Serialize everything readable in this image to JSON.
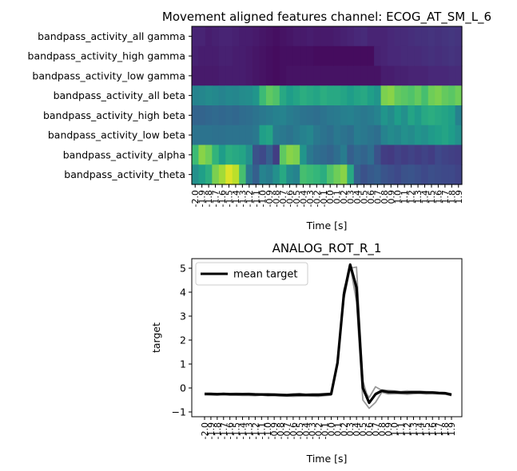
{
  "chart_data": [
    {
      "type": "heatmap",
      "title": "Movement aligned features channel: ECOG_AT_SM_L_6",
      "xlabel": "Time [s]",
      "ylabel": "",
      "x_ticks": [
        "-2.0",
        "-1.9",
        "-1.8",
        "-1.7",
        "-1.6",
        "-1.5",
        "-1.4",
        "-1.3",
        "-1.2",
        "-1.1",
        "-1.0",
        "-0.9",
        "-0.8",
        "-0.7",
        "-0.6",
        "-0.5",
        "-0.4",
        "-0.3",
        "-0.2",
        "-0.1",
        "0.0",
        "0.1",
        "0.2",
        "0.3",
        "0.4",
        "0.5",
        "0.6",
        "0.7",
        "0.8",
        "0.9",
        "1.0",
        "1.1",
        "1.2",
        "1.3",
        "1.4",
        "1.5",
        "1.6",
        "1.7",
        "1.8",
        "1.9"
      ],
      "rows": [
        "bandpass_activity_all gamma",
        "bandpass_activity_high gamma",
        "bandpass_activity_low gamma",
        "bandpass_activity_all beta",
        "bandpass_activity_high beta",
        "bandpass_activity_low beta",
        "bandpass_activity_alpha",
        "bandpass_activity_theta"
      ],
      "colormap": "viridis",
      "values": [
        [
          0.1,
          0.1,
          0.08,
          0.09,
          0.1,
          0.1,
          0.09,
          0.08,
          0.08,
          0.07,
          0.06,
          0.05,
          0.04,
          0.05,
          0.06,
          0.07,
          0.07,
          0.08,
          0.07,
          0.07,
          0.07,
          0.08,
          0.09,
          0.1,
          0.11,
          0.12,
          0.1,
          0.1,
          0.1,
          0.11,
          0.12,
          0.12,
          0.13,
          0.14,
          0.14,
          0.15,
          0.14,
          0.15,
          0.16,
          0.15
        ],
        [
          0.09,
          0.08,
          0.08,
          0.08,
          0.09,
          0.09,
          0.08,
          0.08,
          0.07,
          0.06,
          0.05,
          0.04,
          0.03,
          0.04,
          0.04,
          0.04,
          0.04,
          0.04,
          0.03,
          0.03,
          0.03,
          0.03,
          0.03,
          0.03,
          0.03,
          0.03,
          0.03,
          0.09,
          0.1,
          0.11,
          0.11,
          0.12,
          0.12,
          0.12,
          0.13,
          0.14,
          0.13,
          0.14,
          0.15,
          0.14
        ],
        [
          0.07,
          0.07,
          0.07,
          0.07,
          0.08,
          0.08,
          0.08,
          0.08,
          0.07,
          0.06,
          0.05,
          0.04,
          0.03,
          0.04,
          0.05,
          0.05,
          0.05,
          0.05,
          0.05,
          0.05,
          0.05,
          0.05,
          0.05,
          0.05,
          0.05,
          0.05,
          0.05,
          0.05,
          0.08,
          0.08,
          0.09,
          0.09,
          0.1,
          0.1,
          0.1,
          0.11,
          0.11,
          0.11,
          0.12,
          0.12
        ],
        [
          0.45,
          0.46,
          0.48,
          0.47,
          0.45,
          0.47,
          0.46,
          0.48,
          0.49,
          0.52,
          0.68,
          0.75,
          0.72,
          0.6,
          0.55,
          0.58,
          0.62,
          0.6,
          0.58,
          0.62,
          0.6,
          0.6,
          0.58,
          0.55,
          0.58,
          0.6,
          0.56,
          0.52,
          0.8,
          0.82,
          0.76,
          0.74,
          0.72,
          0.76,
          0.7,
          0.78,
          0.8,
          0.76,
          0.74,
          0.78
        ],
        [
          0.32,
          0.32,
          0.33,
          0.34,
          0.33,
          0.34,
          0.33,
          0.35,
          0.36,
          0.38,
          0.4,
          0.42,
          0.44,
          0.45,
          0.42,
          0.4,
          0.38,
          0.37,
          0.36,
          0.38,
          0.4,
          0.41,
          0.43,
          0.44,
          0.42,
          0.4,
          0.42,
          0.45,
          0.52,
          0.48,
          0.55,
          0.5,
          0.58,
          0.54,
          0.6,
          0.62,
          0.6,
          0.58,
          0.56,
          0.44
        ],
        [
          0.38,
          0.38,
          0.38,
          0.37,
          0.37,
          0.38,
          0.38,
          0.38,
          0.38,
          0.4,
          0.56,
          0.58,
          0.42,
          0.4,
          0.38,
          0.41,
          0.44,
          0.46,
          0.4,
          0.38,
          0.36,
          0.4,
          0.38,
          0.36,
          0.42,
          0.4,
          0.38,
          0.36,
          0.45,
          0.48,
          0.46,
          0.5,
          0.48,
          0.52,
          0.5,
          0.54,
          0.56,
          0.58,
          0.55,
          0.5
        ],
        [
          0.68,
          0.82,
          0.78,
          0.65,
          0.55,
          0.62,
          0.6,
          0.58,
          0.5,
          0.25,
          0.22,
          0.3,
          0.18,
          0.75,
          0.82,
          0.8,
          0.52,
          0.4,
          0.36,
          0.34,
          0.32,
          0.36,
          0.42,
          0.3,
          0.34,
          0.32,
          0.36,
          0.25,
          0.18,
          0.17,
          0.2,
          0.18,
          0.2,
          0.18,
          0.2,
          0.18,
          0.22,
          0.2,
          0.19,
          0.18
        ],
        [
          0.5,
          0.56,
          0.62,
          0.8,
          0.86,
          0.95,
          0.9,
          0.7,
          0.4,
          0.3,
          0.45,
          0.42,
          0.5,
          0.6,
          0.48,
          0.45,
          0.7,
          0.68,
          0.66,
          0.62,
          0.72,
          0.78,
          0.82,
          0.6,
          0.3,
          0.25,
          0.28,
          0.3,
          0.26,
          0.24,
          0.22,
          0.25,
          0.26,
          0.24,
          0.22,
          0.24,
          0.23,
          0.22,
          0.22,
          0.2
        ]
      ]
    },
    {
      "type": "line",
      "title": "ANALOG_ROT_R_1",
      "xlabel": "Time [s]",
      "ylabel": "target",
      "ylim": [
        -1.2,
        5.4
      ],
      "y_ticks": [
        -1,
        0,
        1,
        2,
        3,
        4,
        5
      ],
      "x_ticks": [
        "-2.0",
        "-1.9",
        "-1.8",
        "-1.7",
        "-1.6",
        "-1.5",
        "-1.4",
        "-1.3",
        "-1.2",
        "-1.1",
        "-1.0",
        "-0.9",
        "-0.8",
        "-0.7",
        "-0.6",
        "-0.5",
        "-0.4",
        "-0.3",
        "-0.2",
        "-0.1",
        "0.0",
        "0.1",
        "0.2",
        "0.3",
        "0.4",
        "0.5",
        "0.6",
        "0.7",
        "0.8",
        "0.9",
        "1.0",
        "1.1",
        "1.2",
        "1.3",
        "1.4",
        "1.5",
        "1.6",
        "1.7",
        "1.8",
        "1.9"
      ],
      "legend": {
        "label": "mean target",
        "position": "top-left"
      },
      "trial_series": [
        [
          -0.22,
          -0.22,
          -0.23,
          -0.22,
          -0.23,
          -0.22,
          -0.23,
          -0.22,
          -0.24,
          -0.25,
          -0.24,
          -0.25,
          -0.26,
          -0.27,
          -0.24,
          -0.23,
          -0.26,
          -0.24,
          -0.24,
          -0.23,
          -0.22,
          1.1,
          3.7,
          5.0,
          5.05,
          0.3,
          -0.6,
          -0.22,
          -0.08,
          -0.1,
          -0.12,
          -0.15,
          -0.12,
          -0.14,
          -0.14,
          -0.15,
          -0.16,
          -0.18,
          -0.19,
          -0.24
        ],
        [
          -0.28,
          -0.29,
          -0.3,
          -0.28,
          -0.3,
          -0.3,
          -0.31,
          -0.31,
          -0.32,
          -0.3,
          -0.33,
          -0.32,
          -0.34,
          -0.34,
          -0.35,
          -0.34,
          -0.33,
          -0.34,
          -0.35,
          -0.32,
          -0.3,
          1.0,
          3.9,
          5.1,
          3.6,
          -0.5,
          -0.85,
          -0.6,
          -0.18,
          -0.25,
          -0.24,
          -0.24,
          -0.26,
          -0.24,
          -0.23,
          -0.25,
          -0.24,
          -0.25,
          -0.26,
          -0.32
        ],
        [
          -0.24,
          -0.25,
          -0.24,
          -0.25,
          -0.24,
          -0.25,
          -0.24,
          -0.25,
          -0.26,
          -0.26,
          -0.27,
          -0.28,
          -0.27,
          -0.28,
          -0.27,
          -0.26,
          -0.27,
          -0.28,
          -0.27,
          -0.26,
          -0.24,
          1.05,
          4.1,
          5.05,
          4.0,
          0.0,
          -0.4,
          0.05,
          -0.1,
          -0.15,
          -0.16,
          -0.18,
          -0.18,
          -0.17,
          -0.18,
          -0.17,
          -0.18,
          -0.19,
          -0.2,
          -0.28
        ]
      ],
      "mean_series": [
        -0.25,
        -0.25,
        -0.26,
        -0.25,
        -0.26,
        -0.26,
        -0.26,
        -0.26,
        -0.27,
        -0.27,
        -0.28,
        -0.28,
        -0.29,
        -0.3,
        -0.29,
        -0.28,
        -0.29,
        -0.29,
        -0.29,
        -0.27,
        -0.25,
        1.05,
        3.9,
        5.15,
        4.2,
        0.0,
        -0.62,
        -0.26,
        -0.12,
        -0.17,
        -0.17,
        -0.19,
        -0.19,
        -0.18,
        -0.18,
        -0.19,
        -0.19,
        -0.21,
        -0.22,
        -0.28
      ]
    }
  ]
}
